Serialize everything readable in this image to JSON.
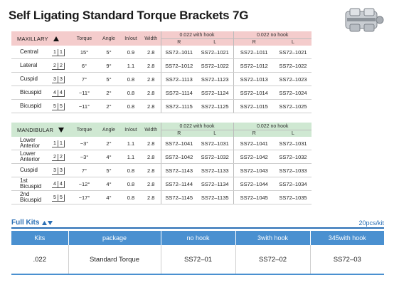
{
  "title": "Self Ligating Standard Torque Brackets 7G",
  "product_image": "bracket-image",
  "maxillary": {
    "label": "MAXILLARY",
    "arrow_icon": "triangle-up-icon",
    "headers": {
      "torque": "Torque",
      "angle": "Angle",
      "inout": "In/out",
      "width": "Width",
      "with_hook": "0.022 with hook",
      "no_hook": "0.022 no hook",
      "r": "R",
      "l": "L"
    },
    "rows": [
      {
        "tooth": "Central",
        "pos_l": "1",
        "pos_r": "1",
        "torque": "15°",
        "angle": "5°",
        "inout": "0.9",
        "width": "2.8",
        "hook_r": "SS72–1011",
        "hook_l": "SS72–1021",
        "nohook_r": "SS72–1011",
        "nohook_l": "SS72–1021"
      },
      {
        "tooth": "Lateral",
        "pos_l": "2",
        "pos_r": "2",
        "torque": "6°",
        "angle": "9°",
        "inout": "1.1",
        "width": "2.8",
        "hook_r": "SS72–1012",
        "hook_l": "SS72–1022",
        "nohook_r": "SS72–1012",
        "nohook_l": "SS72–1022"
      },
      {
        "tooth": "Cuspid",
        "pos_l": "3",
        "pos_r": "3",
        "torque": "7°",
        "angle": "5°",
        "inout": "0.8",
        "width": "2.8",
        "hook_r": "SS72–1113",
        "hook_l": "SS72–1123",
        "nohook_r": "SS72–1013",
        "nohook_l": "SS72–1023"
      },
      {
        "tooth": "Bicuspid",
        "pos_l": "4",
        "pos_r": "4",
        "torque": "−11°",
        "angle": "2°",
        "inout": "0.8",
        "width": "2.8",
        "hook_r": "SS72–1114",
        "hook_l": "SS72–1124",
        "nohook_r": "SS72–1014",
        "nohook_l": "SS72–1024"
      },
      {
        "tooth": "Bicuspid",
        "pos_l": "5",
        "pos_r": "5",
        "torque": "−11°",
        "angle": "2°",
        "inout": "0.8",
        "width": "2.8",
        "hook_r": "SS72–1115",
        "hook_l": "SS72–1125",
        "nohook_r": "SS72–1015",
        "nohook_l": "SS72–1025"
      }
    ]
  },
  "mandibular": {
    "label": "MANDIBULAR",
    "arrow_icon": "triangle-down-icon",
    "headers": {
      "torque": "Torque",
      "angle": "Angle",
      "inout": "In/out",
      "width": "Width",
      "with_hook": "0.022 with hook",
      "no_hook": "0.022 no hook",
      "r": "R",
      "l": "L"
    },
    "rows": [
      {
        "tooth": "Lower Anterior",
        "pos_l": "1",
        "pos_r": "1",
        "torque": "−3°",
        "angle": "2°",
        "inout": "1.1",
        "width": "2.8",
        "hook_r": "SS72–1041",
        "hook_l": "SS72–1031",
        "nohook_r": "SS72–1041",
        "nohook_l": "SS72–1031"
      },
      {
        "tooth": "Lower Anterior",
        "pos_l": "2",
        "pos_r": "2",
        "torque": "−3°",
        "angle": "4°",
        "inout": "1.1",
        "width": "2.8",
        "hook_r": "SS72–1042",
        "hook_l": "SS72–1032",
        "nohook_r": "SS72–1042",
        "nohook_l": "SS72–1032"
      },
      {
        "tooth": "Cuspid",
        "pos_l": "3",
        "pos_r": "3",
        "torque": "7°",
        "angle": "5°",
        "inout": "0.8",
        "width": "2.8",
        "hook_r": "SS72–1143",
        "hook_l": "SS72–1133",
        "nohook_r": "SS72–1043",
        "nohook_l": "SS72–1033"
      },
      {
        "tooth": "1st Bicuspid",
        "pos_l": "4",
        "pos_r": "4",
        "torque": "−12°",
        "angle": "4°",
        "inout": "0.8",
        "width": "2.8",
        "hook_r": "SS72–1144",
        "hook_l": "SS72–1134",
        "nohook_r": "SS72–1044",
        "nohook_l": "SS72–1034"
      },
      {
        "tooth": "2nd Bicuspid",
        "pos_l": "5",
        "pos_r": "5",
        "torque": "−17°",
        "angle": "4°",
        "inout": "0.8",
        "width": "2.8",
        "hook_r": "SS72–1145",
        "hook_l": "SS72–1135",
        "nohook_r": "SS72–1045",
        "nohook_l": "SS72–1035"
      }
    ]
  },
  "full_kits": {
    "label": "Full Kits",
    "arrow_icon": "triangle-up-down-icon",
    "pcs": "20pcs/kit",
    "headers": [
      "Kits",
      "package",
      "no hook",
      "3with hook",
      "345with hook"
    ],
    "row": [
      ".022",
      "Standard Torque",
      "SS72–01",
      "SS72–02",
      "SS72–03"
    ]
  },
  "colors": {
    "maxillary_header": "#f4cccc",
    "mandibular_header": "#cfe8d2",
    "kits_blue": "#4a90d0",
    "kits_title": "#2a6fb5"
  }
}
